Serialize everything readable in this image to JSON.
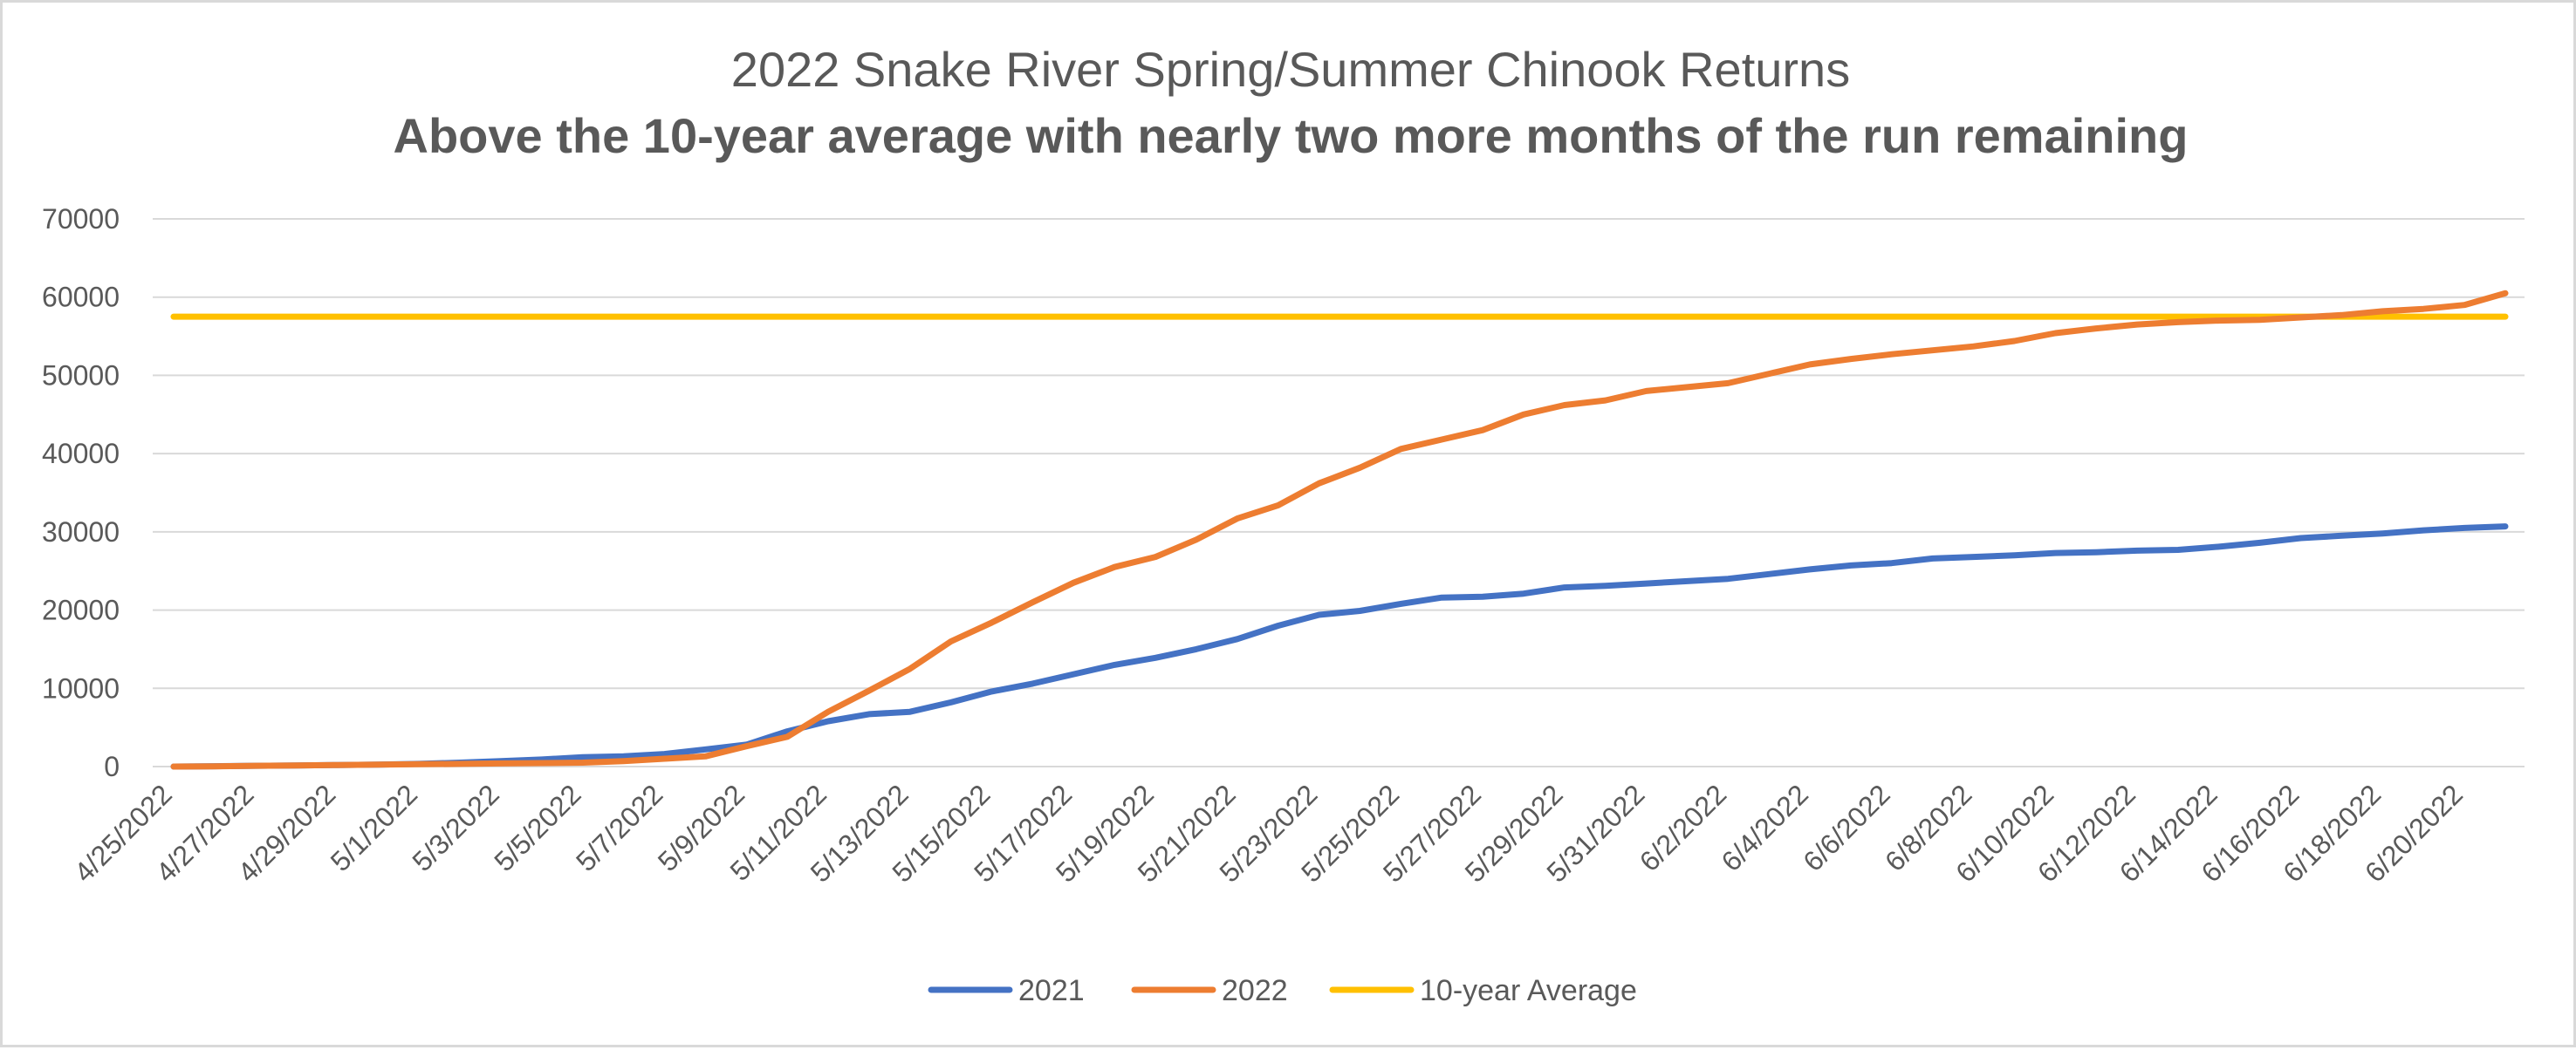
{
  "chart_data": {
    "type": "line",
    "title": "2022 Snake River Spring/Summer Chinook Returns",
    "subtitle": "Above the 10-year average with nearly two more months of the run remaining",
    "ylim": [
      0,
      70000
    ],
    "yticks": [
      "0",
      "10000",
      "20000",
      "30000",
      "40000",
      "50000",
      "60000",
      "70000"
    ],
    "grid": true,
    "legend_position": "bottom",
    "x": [
      "4/25/2022",
      "4/26/2022",
      "4/27/2022",
      "4/28/2022",
      "4/29/2022",
      "4/30/2022",
      "5/1/2022",
      "5/2/2022",
      "5/3/2022",
      "5/4/2022",
      "5/5/2022",
      "5/6/2022",
      "5/7/2022",
      "5/8/2022",
      "5/9/2022",
      "5/10/2022",
      "5/11/2022",
      "5/12/2022",
      "5/13/2022",
      "5/14/2022",
      "5/15/2022",
      "5/16/2022",
      "5/17/2022",
      "5/18/2022",
      "5/19/2022",
      "5/20/2022",
      "5/21/2022",
      "5/22/2022",
      "5/23/2022",
      "5/24/2022",
      "5/25/2022",
      "5/26/2022",
      "5/27/2022",
      "5/28/2022",
      "5/29/2022",
      "5/30/2022",
      "5/31/2022",
      "6/1/2022",
      "6/2/2022",
      "6/3/2022",
      "6/4/2022",
      "6/5/2022",
      "6/6/2022",
      "6/7/2022",
      "6/8/2022",
      "6/9/2022",
      "6/10/2022",
      "6/11/2022",
      "6/12/2022",
      "6/13/2022",
      "6/14/2022",
      "6/15/2022",
      "6/16/2022",
      "6/17/2022",
      "6/18/2022",
      "6/19/2022",
      "6/20/2022",
      "6/21/2022"
    ],
    "xtick_labels": [
      "4/25/2022",
      "4/27/2022",
      "4/29/2022",
      "5/1/2022",
      "5/3/2022",
      "5/5/2022",
      "5/7/2022",
      "5/9/2022",
      "5/11/2022",
      "5/13/2022",
      "5/15/2022",
      "5/17/2022",
      "5/19/2022",
      "5/21/2022",
      "5/23/2022",
      "5/25/2022",
      "5/27/2022",
      "5/29/2022",
      "5/31/2022",
      "6/2/2022",
      "6/4/2022",
      "6/6/2022",
      "6/8/2022",
      "6/10/2022",
      "6/12/2022",
      "6/14/2022",
      "6/16/2022",
      "6/18/2022",
      "6/20/2022"
    ],
    "series": [
      {
        "name": "2021",
        "color": "#4472c4",
        "values": [
          0,
          50,
          100,
          150,
          200,
          250,
          350,
          500,
          700,
          900,
          1200,
          1300,
          1600,
          2200,
          2800,
          4500,
          5800,
          6700,
          7000,
          8200,
          9600,
          10600,
          11800,
          13000,
          13900,
          15000,
          16300,
          18000,
          19400,
          19900,
          20800,
          21600,
          21700,
          22100,
          22900,
          23100,
          23400,
          23700,
          24000,
          24600,
          25200,
          25700,
          26000,
          26600,
          26800,
          27000,
          27300,
          27400,
          27600,
          27700,
          28100,
          28600,
          29200,
          29500,
          29800,
          30200,
          30500,
          30700
        ]
      },
      {
        "name": "2022",
        "color": "#ed7d31",
        "values": [
          0,
          20,
          100,
          150,
          200,
          250,
          300,
          350,
          400,
          450,
          500,
          700,
          1000,
          1300,
          2600,
          3800,
          7000,
          9700,
          12500,
          16000,
          18400,
          21000,
          23500,
          25500,
          26800,
          29000,
          31700,
          33400,
          36200,
          38200,
          40600,
          41800,
          43000,
          45000,
          46200,
          46800,
          48000,
          48500,
          49000,
          50200,
          51400,
          52100,
          52700,
          53200,
          53700,
          54400,
          55400,
          56000,
          56500,
          56800,
          57000,
          57100,
          57400,
          57700,
          58200,
          58500,
          59000,
          60500
        ]
      },
      {
        "name": "10-year Average",
        "color": "#ffc000",
        "values": [
          57500,
          57500,
          57500,
          57500,
          57500,
          57500,
          57500,
          57500,
          57500,
          57500,
          57500,
          57500,
          57500,
          57500,
          57500,
          57500,
          57500,
          57500,
          57500,
          57500,
          57500,
          57500,
          57500,
          57500,
          57500,
          57500,
          57500,
          57500,
          57500,
          57500,
          57500,
          57500,
          57500,
          57500,
          57500,
          57500,
          57500,
          57500,
          57500,
          57500,
          57500,
          57500,
          57500,
          57500,
          57500,
          57500,
          57500,
          57500,
          57500,
          57500,
          57500,
          57500,
          57500,
          57500,
          57500,
          57500,
          57500,
          57500
        ]
      }
    ]
  }
}
